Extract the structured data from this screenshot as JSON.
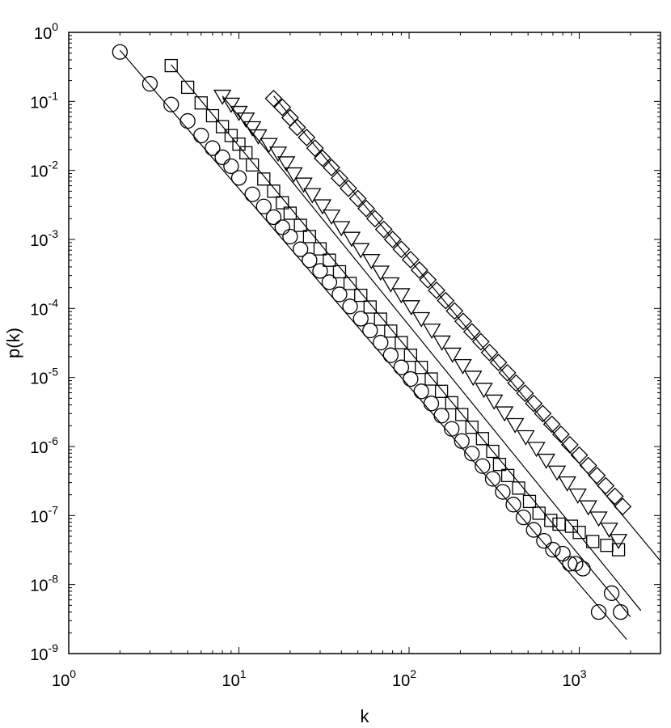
{
  "chart_data": {
    "type": "scatter",
    "title": "",
    "xlabel": "k",
    "ylabel": "p(k)",
    "x_scale": "log",
    "y_scale": "log",
    "xlim": [
      1,
      3000
    ],
    "ylim": [
      1e-09,
      1
    ],
    "x_ticks": [
      {
        "base": "10",
        "exp": "0",
        "value": 1
      },
      {
        "base": "10",
        "exp": "1",
        "value": 10
      },
      {
        "base": "10",
        "exp": "2",
        "value": 100
      },
      {
        "base": "10",
        "exp": "3",
        "value": 1000
      }
    ],
    "y_ticks": [
      {
        "base": "10",
        "exp": "0",
        "value": 1
      },
      {
        "base": "10",
        "exp": "-1",
        "value": 0.1
      },
      {
        "base": "10",
        "exp": "-2",
        "value": 0.01
      },
      {
        "base": "10",
        "exp": "-3",
        "value": 0.001
      },
      {
        "base": "10",
        "exp": "-4",
        "value": 0.0001
      },
      {
        "base": "10",
        "exp": "-5",
        "value": 1e-05
      },
      {
        "base": "10",
        "exp": "-6",
        "value": 1e-06
      },
      {
        "base": "10",
        "exp": "-7",
        "value": 1e-07
      },
      {
        "base": "10",
        "exp": "-8",
        "value": 1e-08
      },
      {
        "base": "10",
        "exp": "-9",
        "value": 1e-09
      }
    ],
    "grid": false,
    "legend": "none",
    "series": [
      {
        "marker": "circle",
        "points": [
          [
            2,
            0.52
          ],
          [
            3,
            0.18
          ],
          [
            4,
            0.09
          ],
          [
            5,
            0.052
          ],
          [
            6,
            0.032
          ],
          [
            7,
            0.021
          ],
          [
            8,
            0.0155
          ],
          [
            9,
            0.0115
          ],
          [
            10,
            0.0078
          ],
          [
            12,
            0.0045
          ],
          [
            14,
            0.003
          ],
          [
            16,
            0.0021
          ],
          [
            18,
            0.0015
          ],
          [
            20,
            0.0011
          ],
          [
            23,
            0.00072
          ],
          [
            26,
            0.0005
          ],
          [
            30,
            0.00035
          ],
          [
            34,
            0.00024
          ],
          [
            39,
            0.00016
          ],
          [
            45,
            0.000107
          ],
          [
            52,
            7.1e-05
          ],
          [
            59,
            4.8e-05
          ],
          [
            68,
            3.2e-05
          ],
          [
            78,
            2.1e-05
          ],
          [
            90,
            1.4e-05
          ],
          [
            102,
            9.5e-06
          ],
          [
            118,
            6.3e-06
          ],
          [
            135,
            4.2e-06
          ],
          [
            155,
            2.8e-06
          ],
          [
            178,
            1.8e-06
          ],
          [
            204,
            1.2e-06
          ],
          [
            234,
            7.9e-07
          ],
          [
            270,
            5.2e-07
          ],
          [
            310,
            3.4e-07
          ],
          [
            355,
            2.2e-07
          ],
          [
            410,
            1.44e-07
          ],
          [
            470,
            9.4e-08
          ],
          [
            540,
            6.2e-08
          ],
          [
            620,
            4.3e-08
          ],
          [
            700,
            3.2e-08
          ],
          [
            800,
            2.8e-08
          ],
          [
            880,
            2e-08
          ],
          [
            950,
            2e-08
          ],
          [
            1050,
            1.7e-08
          ],
          [
            1300,
            4e-09
          ],
          [
            1550,
            7.5e-09
          ],
          [
            1750,
            4e-09
          ]
        ],
        "fit": {
          "x": [
            2,
            1900
          ],
          "y": [
            0.55,
            1.6e-09
          ]
        }
      },
      {
        "marker": "square",
        "points": [
          [
            4,
            0.33
          ],
          [
            5,
            0.16
          ],
          [
            6,
            0.095
          ],
          [
            7,
            0.062
          ],
          [
            8,
            0.043
          ],
          [
            9,
            0.032
          ],
          [
            10,
            0.024
          ],
          [
            11,
            0.018
          ],
          [
            12,
            0.012
          ],
          [
            14,
            0.0075
          ],
          [
            16,
            0.005
          ],
          [
            18,
            0.0034
          ],
          [
            20,
            0.0024
          ],
          [
            23,
            0.0016
          ],
          [
            26,
            0.0011
          ],
          [
            30,
            0.00073
          ],
          [
            34,
            0.0005
          ],
          [
            39,
            0.00034
          ],
          [
            45,
            0.00023
          ],
          [
            52,
            0.000155
          ],
          [
            59,
            0.000105
          ],
          [
            68,
            7e-05
          ],
          [
            78,
            4.7e-05
          ],
          [
            90,
            3.2e-05
          ],
          [
            102,
            2.1e-05
          ],
          [
            118,
            1.4e-05
          ],
          [
            135,
            9.5e-06
          ],
          [
            155,
            6.3e-06
          ],
          [
            178,
            4.3e-06
          ],
          [
            204,
            2.9e-06
          ],
          [
            234,
            1.9e-06
          ],
          [
            270,
            1.3e-06
          ],
          [
            310,
            8.5e-07
          ],
          [
            340,
            5.5e-07
          ],
          [
            380,
            3.8e-07
          ],
          [
            440,
            2.5e-07
          ],
          [
            510,
            1.6e-07
          ],
          [
            580,
            1.08e-07
          ],
          [
            680,
            8.5e-08
          ],
          [
            760,
            7.5e-08
          ],
          [
            900,
            7e-08
          ],
          [
            1000,
            5.7e-08
          ],
          [
            1200,
            4.2e-08
          ],
          [
            1450,
            3.7e-08
          ],
          [
            1700,
            3.2e-08
          ]
        ],
        "fit": {
          "x": [
            4,
            2000
          ],
          "y": [
            0.34,
            3.4e-09
          ]
        }
      },
      {
        "marker": "triangle-down",
        "points": [
          [
            8,
            0.12
          ],
          [
            9,
            0.092
          ],
          [
            10,
            0.07
          ],
          [
            11,
            0.056
          ],
          [
            12,
            0.042
          ],
          [
            13,
            0.032
          ],
          [
            15,
            0.024
          ],
          [
            17,
            0.018
          ],
          [
            19,
            0.013
          ],
          [
            21,
            0.009
          ],
          [
            24,
            0.0064
          ],
          [
            27,
            0.0045
          ],
          [
            31,
            0.0031
          ],
          [
            35,
            0.0022
          ],
          [
            40,
            0.0015
          ],
          [
            46,
            0.00105
          ],
          [
            52,
            0.00072
          ],
          [
            60,
            0.0005
          ],
          [
            68,
            0.00034
          ],
          [
            78,
            0.00023
          ],
          [
            90,
            0.00016
          ],
          [
            103,
            0.000107
          ],
          [
            118,
            7.2e-05
          ],
          [
            136,
            4.9e-05
          ],
          [
            156,
            3.3e-05
          ],
          [
            180,
            2.2e-05
          ],
          [
            207,
            1.5e-05
          ],
          [
            238,
            1.02e-05
          ],
          [
            275,
            6.8e-06
          ],
          [
            316,
            4.6e-06
          ],
          [
            364,
            3.1e-06
          ],
          [
            420,
            2.1e-06
          ],
          [
            485,
            1.4e-06
          ],
          [
            560,
            9.5e-07
          ],
          [
            640,
            6.4e-07
          ],
          [
            740,
            4.3e-07
          ],
          [
            850,
            3e-07
          ],
          [
            980,
            2e-07
          ],
          [
            1130,
            1.35e-07
          ],
          [
            1300,
            9.3e-08
          ],
          [
            1500,
            6.4e-08
          ],
          [
            1700,
            4.4e-08
          ]
        ],
        "fit": {
          "x": [
            8,
            2300
          ],
          "y": [
            0.12,
            4.2e-09
          ]
        }
      },
      {
        "marker": "diamond",
        "points": [
          [
            16,
            0.11
          ],
          [
            18,
            0.082
          ],
          [
            20,
            0.058
          ],
          [
            22,
            0.042
          ],
          [
            25,
            0.03
          ],
          [
            28,
            0.021
          ],
          [
            31,
            0.015
          ],
          [
            35,
            0.011
          ],
          [
            39,
            0.0077
          ],
          [
            44,
            0.0055
          ],
          [
            50,
            0.0039
          ],
          [
            56,
            0.0028
          ],
          [
            63,
            0.002
          ],
          [
            71,
            0.0014
          ],
          [
            80,
            0.001
          ],
          [
            90,
            0.00072
          ],
          [
            102,
            0.00051
          ],
          [
            115,
            0.00036
          ],
          [
            129,
            0.00026
          ],
          [
            145,
            0.000183
          ],
          [
            164,
            0.00013
          ],
          [
            185,
            9.2e-05
          ],
          [
            208,
            6.5e-05
          ],
          [
            234,
            4.6e-05
          ],
          [
            264,
            3.3e-05
          ],
          [
            297,
            2.3e-05
          ],
          [
            335,
            1.65e-05
          ],
          [
            378,
            1.17e-05
          ],
          [
            425,
            8.3e-06
          ],
          [
            480,
            5.9e-06
          ],
          [
            540,
            4.2e-06
          ],
          [
            610,
            3e-06
          ],
          [
            690,
            2.1e-06
          ],
          [
            780,
            1.5e-06
          ],
          [
            880,
            1.06e-06
          ],
          [
            1000,
            7.5e-07
          ],
          [
            1130,
            5.3e-07
          ],
          [
            1270,
            3.8e-07
          ],
          [
            1430,
            2.7e-07
          ],
          [
            1620,
            1.9e-07
          ],
          [
            1800,
            1.35e-07
          ]
        ],
        "fit": {
          "x": [
            16,
            3000
          ],
          "y": [
            0.12,
            2.2e-08
          ]
        }
      }
    ]
  }
}
